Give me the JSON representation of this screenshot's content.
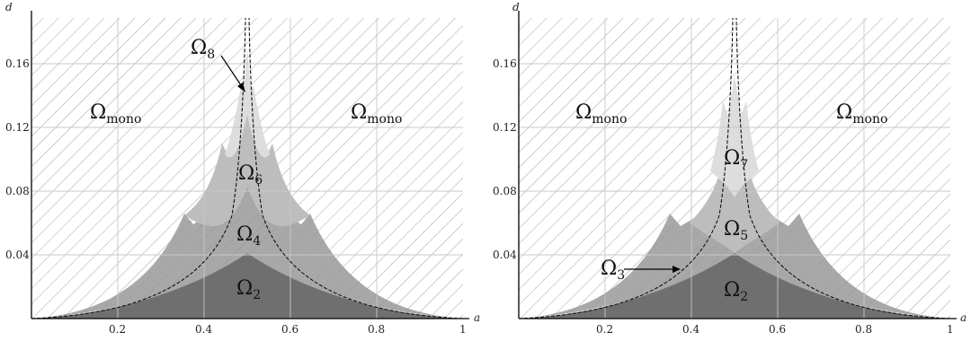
{
  "panels": [
    {
      "id": "left",
      "xlabel": "a",
      "ylabel": "d",
      "xticks": [
        "0.2",
        "0.4",
        "0.6",
        "0.8",
        "1"
      ],
      "yticks": [
        "0.04",
        "0.08",
        "0.12",
        "0.16"
      ],
      "labels": [
        {
          "base": "Ω",
          "sub": "mono"
        },
        {
          "base": "Ω",
          "sub": "mono"
        },
        {
          "base": "Ω",
          "sub": "8"
        },
        {
          "base": "Ω",
          "sub": "6"
        },
        {
          "base": "Ω",
          "sub": "4"
        },
        {
          "base": "Ω",
          "sub": "2"
        }
      ]
    },
    {
      "id": "right",
      "xlabel": "a",
      "ylabel": "d",
      "xticks": [
        "0.2",
        "0.4",
        "0.6",
        "0.8",
        "1"
      ],
      "yticks": [
        "0.04",
        "0.08",
        "0.12",
        "0.16"
      ],
      "labels": [
        {
          "base": "Ω",
          "sub": "mono"
        },
        {
          "base": "Ω",
          "sub": "mono"
        },
        {
          "base": "Ω",
          "sub": "7"
        },
        {
          "base": "Ω",
          "sub": "5"
        },
        {
          "base": "Ω",
          "sub": "3"
        },
        {
          "base": "Ω",
          "sub": "2"
        }
      ]
    }
  ],
  "colors": {
    "omega2": "#6f6f6f",
    "omega4": "#999999",
    "omega6": "#bdbdbd",
    "omega8": "#dddddd",
    "hatch": "#9a9a9a",
    "grid": "#c8c8c8",
    "axis": "#000000"
  }
}
